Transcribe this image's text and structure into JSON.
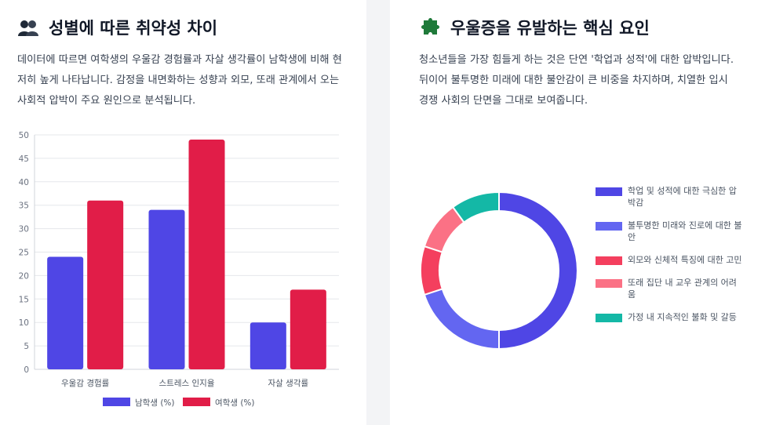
{
  "left": {
    "title": "성별에 따른 취약성 차이",
    "title_icon": "people-icon",
    "description": "데이터에 따르면 여학생의 우울감 경험률과 자살 생각률이 남학생에 비해 현저히 높게 나타납니다. 감정을 내면화하는 성향과 외모, 또래 관계에서 오는 사회적 압박이 주요 원인으로 분석됩니다."
  },
  "right": {
    "title": "우울증을 유발하는 핵심 요인",
    "title_icon": "puzzle-icon",
    "description": "청소년들을 가장 힘들게 하는 것은 단연 '학업과 성적'에 대한 압박입니다. 뒤이어 불투명한 미래에 대한 불안감이 큰 비중을 차지하며, 치열한 입시 경쟁 사회의 단면을 그대로 보여줍니다."
  },
  "chart_data": [
    {
      "type": "bar",
      "categories": [
        "우울감 경험률",
        "스트레스 인지율",
        "자살 생각률"
      ],
      "series": [
        {
          "name": "남학생 (%)",
          "values": [
            24,
            34,
            10
          ],
          "color": "#4f46e5"
        },
        {
          "name": "여학생 (%)",
          "values": [
            36,
            49,
            17
          ],
          "color": "#e11d48"
        }
      ],
      "ylim": [
        0,
        50
      ],
      "yticks": [
        0,
        5,
        10,
        15,
        20,
        25,
        30,
        35,
        40,
        45,
        50
      ],
      "grid": true,
      "legend_position": "bottom"
    },
    {
      "type": "pie",
      "style": "donut",
      "labels": [
        "학업 및 성적에 대한 극심한 압박감",
        "불투명한 미래와 진로에 대한 불안",
        "외모와 신체적 특징에 대한 고민",
        "또래 집단 내 교우 관계의 어려움",
        "가정 내 지속적인 불화 및 갈등"
      ],
      "values": [
        50,
        20,
        10,
        10,
        10
      ],
      "colors": [
        "#4f46e5",
        "#6366f1",
        "#f43f5e",
        "#fb7185",
        "#14b8a6"
      ],
      "legend_position": "right"
    }
  ]
}
